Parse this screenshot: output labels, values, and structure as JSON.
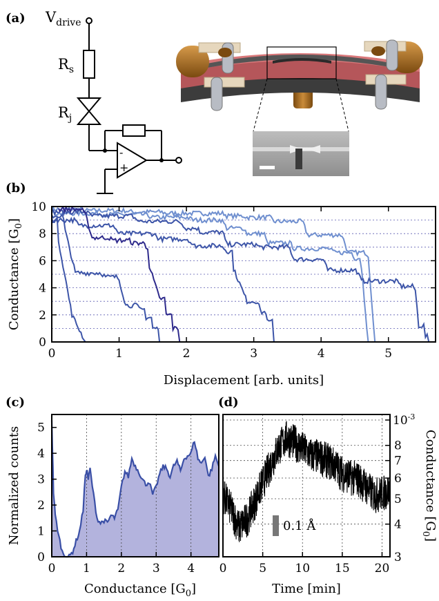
{
  "figure": {
    "panel_labels": [
      "(a)",
      "(b)",
      "(c)",
      "(d)"
    ],
    "circuit": {
      "v_drive": "V",
      "v_drive_sub": "drive",
      "r_s": "R",
      "r_s_sub": "s",
      "r_j": "R",
      "r_j_sub": "j",
      "opamp_minus": "-",
      "opamp_plus": "+"
    },
    "colors": {
      "trace_dark": "#2e2a8c",
      "trace_mid": "#3d55a8",
      "trace_light": "#6f8fcf",
      "hist_fill": "#b3b3dd",
      "hist_line": "#3a4fa6",
      "scalebar": "#777777"
    }
  },
  "chart_data": [
    {
      "panel": "(b)",
      "type": "line",
      "xlabel": "Displacement [arb. units]",
      "ylabel": "Conductance [G",
      "ylabel_sub": "0",
      "ylabel_end": "]",
      "xlim": [
        0,
        5.7
      ],
      "ylim": [
        0,
        10
      ],
      "xticks": [
        "0",
        "1",
        "2",
        "3",
        "4",
        "5"
      ],
      "yticks": [
        "0",
        "2",
        "4",
        "6",
        "8",
        "10"
      ],
      "grid": "horizontal dashed",
      "series": [
        {
          "color": "light",
          "x": [
            0.0,
            0.5,
            1.2,
            1.7,
            2.3,
            2.6,
            2.9,
            3.3,
            3.8,
            4.4,
            4.7,
            4.8
          ],
          "y": [
            9.8,
            9.7,
            9.6,
            9.5,
            9.5,
            9.3,
            9.2,
            8.9,
            7.9,
            6.6,
            6.4,
            0.0
          ]
        },
        {
          "color": "light",
          "x": [
            0.0,
            0.8,
            1.5,
            2.1,
            2.6,
            2.9,
            3.2,
            3.6,
            4.2,
            4.5,
            4.6,
            4.7
          ],
          "y": [
            9.5,
            9.4,
            9.2,
            9.0,
            8.4,
            8.0,
            7.3,
            6.9,
            6.6,
            6.2,
            5.5,
            0.0
          ]
        },
        {
          "color": "mid",
          "x": [
            0.0,
            0.6,
            1.3,
            2.0,
            2.2,
            2.6,
            3.1,
            3.6,
            4.1,
            4.6,
            5.2,
            5.4,
            5.45,
            5.55,
            5.6
          ],
          "y": [
            9.6,
            9.3,
            8.9,
            8.4,
            8.1,
            7.2,
            7.0,
            6.1,
            5.3,
            4.5,
            4.1,
            3.8,
            1.2,
            0.4,
            0.0
          ]
        },
        {
          "color": "mid",
          "x": [
            0.0,
            0.4,
            1.0,
            1.6,
            2.1,
            2.6,
            2.7,
            2.9,
            3.1,
            3.2,
            3.3
          ],
          "y": [
            9.0,
            8.6,
            8.0,
            7.6,
            7.1,
            6.7,
            5.4,
            3.0,
            2.2,
            1.5,
            0.0
          ]
        },
        {
          "color": "mid",
          "x": [
            0.0,
            0.2,
            0.35,
            0.8,
            1.0,
            1.1,
            1.3,
            1.4,
            1.5,
            1.6
          ],
          "y": [
            9.3,
            8.2,
            5.1,
            4.8,
            4.6,
            2.7,
            2.4,
            1.8,
            1.0,
            0.0
          ]
        },
        {
          "color": "mid",
          "x": [
            0.0,
            0.1,
            0.3,
            0.5
          ],
          "y": [
            9.0,
            7.5,
            2.0,
            0.0
          ]
        },
        {
          "color": "dark",
          "x": [
            0.1,
            0.5,
            0.6,
            0.9,
            1.2,
            1.4,
            1.45,
            1.6,
            1.7,
            1.8,
            1.9
          ],
          "y": [
            9.8,
            9.4,
            7.7,
            7.5,
            7.3,
            7.0,
            5.6,
            3.2,
            2.0,
            1.0,
            0.0
          ]
        }
      ]
    },
    {
      "panel": "(c)",
      "type": "area",
      "xlabel": "Conductance [G",
      "xlabel_sub": "0",
      "xlabel_end": "]",
      "ylabel": "Normalized counts",
      "xlim": [
        0,
        4.8
      ],
      "ylim": [
        0,
        5.5
      ],
      "xticks": [
        "0",
        "1",
        "2",
        "3",
        "4"
      ],
      "yticks": [
        "0",
        "1",
        "2",
        "3",
        "4",
        "5"
      ],
      "grid": "vertical dashed",
      "x": [
        0.0,
        0.05,
        0.1,
        0.2,
        0.3,
        0.4,
        0.5,
        0.6,
        0.7,
        0.8,
        0.9,
        0.95,
        1.0,
        1.05,
        1.1,
        1.2,
        1.3,
        1.4,
        1.5,
        1.6,
        1.7,
        1.8,
        1.9,
        2.0,
        2.1,
        2.2,
        2.3,
        2.4,
        2.5,
        2.6,
        2.7,
        2.8,
        2.9,
        3.0,
        3.1,
        3.2,
        3.3,
        3.4,
        3.5,
        3.6,
        3.7,
        3.8,
        3.9,
        4.0,
        4.1,
        4.2,
        4.3,
        4.4,
        4.5,
        4.6,
        4.7,
        4.8
      ],
      "y": [
        5.3,
        2.5,
        1.6,
        0.8,
        0.2,
        0.0,
        0.0,
        0.2,
        0.6,
        1.0,
        1.8,
        2.9,
        3.4,
        3.0,
        3.4,
        2.4,
        1.5,
        1.3,
        1.4,
        1.3,
        1.6,
        1.5,
        1.8,
        2.7,
        3.3,
        3.1,
        3.8,
        3.5,
        3.3,
        3.0,
        2.8,
        2.9,
        2.4,
        2.7,
        3.2,
        3.5,
        3.4,
        3.1,
        3.5,
        3.7,
        3.3,
        3.8,
        3.9,
        4.0,
        4.5,
        3.8,
        3.6,
        3.9,
        3.1,
        3.4,
        3.9,
        3.5
      ]
    },
    {
      "panel": "(d)",
      "type": "line",
      "xlabel": "Time [min]",
      "ylabel": "Conductance [G",
      "ylabel_sub": "0",
      "ylabel_end": "]",
      "xlim": [
        0,
        21
      ],
      "xticks": [
        "0",
        "5",
        "10",
        "15",
        "20"
      ],
      "yticks_right": [
        "3",
        "4",
        "5",
        "6",
        "7",
        "8"
      ],
      "ytick_top": "10",
      "ytick_top_exp": "-3",
      "y_scale": "log",
      "y_range_1e4": [
        3,
        10.5
      ],
      "grid": "both dashed",
      "scalebar_label": "0.1 Å",
      "trend_x": [
        0.0,
        1.0,
        2.0,
        3.0,
        4.0,
        5.0,
        6.0,
        7.0,
        8.0,
        9.0,
        10.0,
        11.0,
        12.0,
        13.0,
        14.0,
        15.0,
        16.0,
        17.0,
        18.0,
        19.0,
        20.0,
        21.0
      ],
      "trend_y": [
        5.2,
        4.6,
        3.9,
        4.2,
        4.9,
        5.8,
        6.8,
        7.9,
        8.6,
        8.3,
        7.8,
        7.4,
        7.3,
        7.1,
        6.8,
        6.3,
        6.1,
        6.0,
        5.6,
        5.2,
        5.3,
        5.4
      ]
    }
  ]
}
